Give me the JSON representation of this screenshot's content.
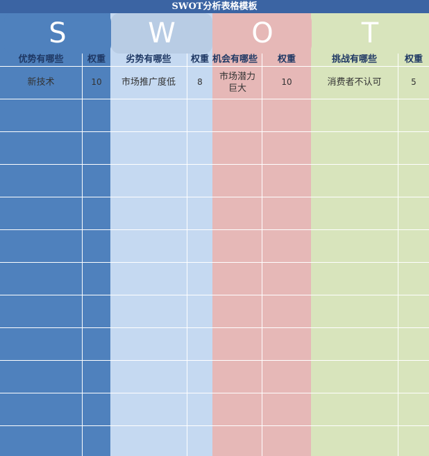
{
  "title": "SWOT分析表格模板",
  "letters": [
    "S",
    "W",
    "O",
    "T"
  ],
  "headers": {
    "s_items": "优势有哪些",
    "s_weight": "权重",
    "w_items": "劣势有哪些",
    "w_weight": "权重",
    "o_items": "机会有哪些",
    "o_weight": "权重",
    "t_items": "挑战有哪些",
    "t_weight": "权重"
  },
  "rows": [
    {
      "s_item": "新技术",
      "s_weight": "10",
      "w_item": "市场推广度低",
      "w_weight": "8",
      "o_item": "市场潜力巨大",
      "o_weight": "10",
      "t_item": "消费者不认可",
      "t_weight": "5"
    }
  ],
  "colors": {
    "strength": "#4f81bd",
    "weakness": "#c5d9f1",
    "opportunity": "#e6b8b7",
    "threat": "#d8e4bc",
    "title_bar": "#3b64a3"
  }
}
